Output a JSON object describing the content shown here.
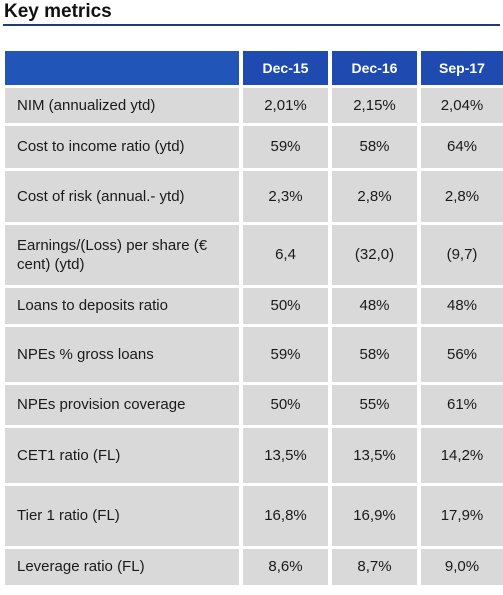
{
  "title": "Key metrics",
  "colors": {
    "header_bg": "#1f4bb0",
    "row_bg": "#d9d9d9",
    "rule": "#1f3a7a"
  },
  "table": {
    "headers": [
      "",
      "Dec-15",
      "Dec-16",
      "Sep-17"
    ],
    "rows": [
      {
        "label": "NIM (annualized ytd)",
        "values": [
          "2,01%",
          "2,15%",
          "2,04%"
        ]
      },
      {
        "label": "Cost to income ratio (ytd)",
        "values": [
          "59%",
          "58%",
          "64%"
        ]
      },
      {
        "label": "Cost of risk (annual.- ytd)",
        "values": [
          "2,3%",
          "2,8%",
          "2,8%"
        ]
      },
      {
        "label": "Earnings/(Loss) per share (€ cent) (ytd)",
        "values": [
          "6,4",
          "(32,0)",
          "(9,7)"
        ]
      },
      {
        "label": "Loans to deposits ratio",
        "values": [
          "50%",
          "48%",
          "48%"
        ]
      },
      {
        "label": "NPEs  % gross loans",
        "values": [
          "59%",
          "58%",
          "56%"
        ]
      },
      {
        "label": "NPEs provision coverage",
        "values": [
          "50%",
          "55%",
          "61%"
        ]
      },
      {
        "label": "CET1 ratio (FL)",
        "values": [
          "13,5%",
          "13,5%",
          "14,2%"
        ]
      },
      {
        "label": "Tier 1 ratio (FL)",
        "values": [
          "16,8%",
          "16,9%",
          "17,9%"
        ]
      },
      {
        "label": "Leverage ratio (FL)",
        "values": [
          "8,6%",
          "8,7%",
          "9,0%"
        ]
      }
    ]
  }
}
